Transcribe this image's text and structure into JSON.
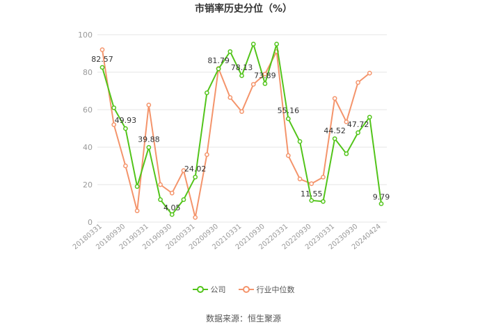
{
  "title": "市销率历史分位（%）",
  "source": "数据来源：恒生聚源",
  "colors": {
    "company": "#52c41a",
    "industry": "#f4946b",
    "grid": "#e6e6e6",
    "tick": "#999999",
    "label": "#333333"
  },
  "legend": [
    "公司",
    "行业中位数"
  ],
  "chart_data": {
    "type": "line",
    "ylim": [
      0,
      100
    ],
    "yticks": [
      0,
      20,
      40,
      60,
      80,
      100
    ],
    "x_tick_labels": [
      "20180331",
      "20180930",
      "20190331",
      "20190930",
      "20200331",
      "20200930",
      "20210331",
      "20210930",
      "20220331",
      "20220930",
      "20230331",
      "20230930",
      "20240424"
    ],
    "x": [
      "20180331",
      "20180630",
      "20180930",
      "20181231",
      "20190331",
      "20190630",
      "20190930",
      "20191231",
      "20200331",
      "20200630",
      "20200930",
      "20201231",
      "20210331",
      "20210630",
      "20210930",
      "20211231",
      "20220331",
      "20220630",
      "20220930",
      "20221231",
      "20230331",
      "20230630",
      "20230930",
      "20231231",
      "20240424"
    ],
    "series": [
      {
        "name": "公司",
        "values": [
          82.57,
          61,
          49.93,
          19,
          39.88,
          12,
          4.05,
          12,
          24.02,
          69,
          81.79,
          91,
          78.13,
          95,
          73.89,
          95,
          55.16,
          43,
          11.55,
          11,
          44.52,
          36.5,
          47.72,
          56,
          9.79
        ],
        "labels": [
          "82.57",
          "",
          "49.93",
          "",
          "39.88",
          "",
          "4.05",
          "",
          "24.02",
          "",
          "81.79",
          "",
          "78.13",
          "",
          "73.89",
          "",
          "55.16",
          "",
          "11.55",
          "",
          "44.52",
          "",
          "47.72",
          "",
          "9.79"
        ]
      },
      {
        "name": "行业中位数",
        "values": [
          92,
          52,
          30,
          6,
          62.5,
          20,
          15.5,
          27.5,
          2.5,
          36,
          82,
          66.5,
          59,
          73.5,
          79,
          91,
          35.5,
          23,
          20.5,
          24,
          66,
          53.5,
          74.5,
          79.5,
          null
        ]
      }
    ]
  }
}
